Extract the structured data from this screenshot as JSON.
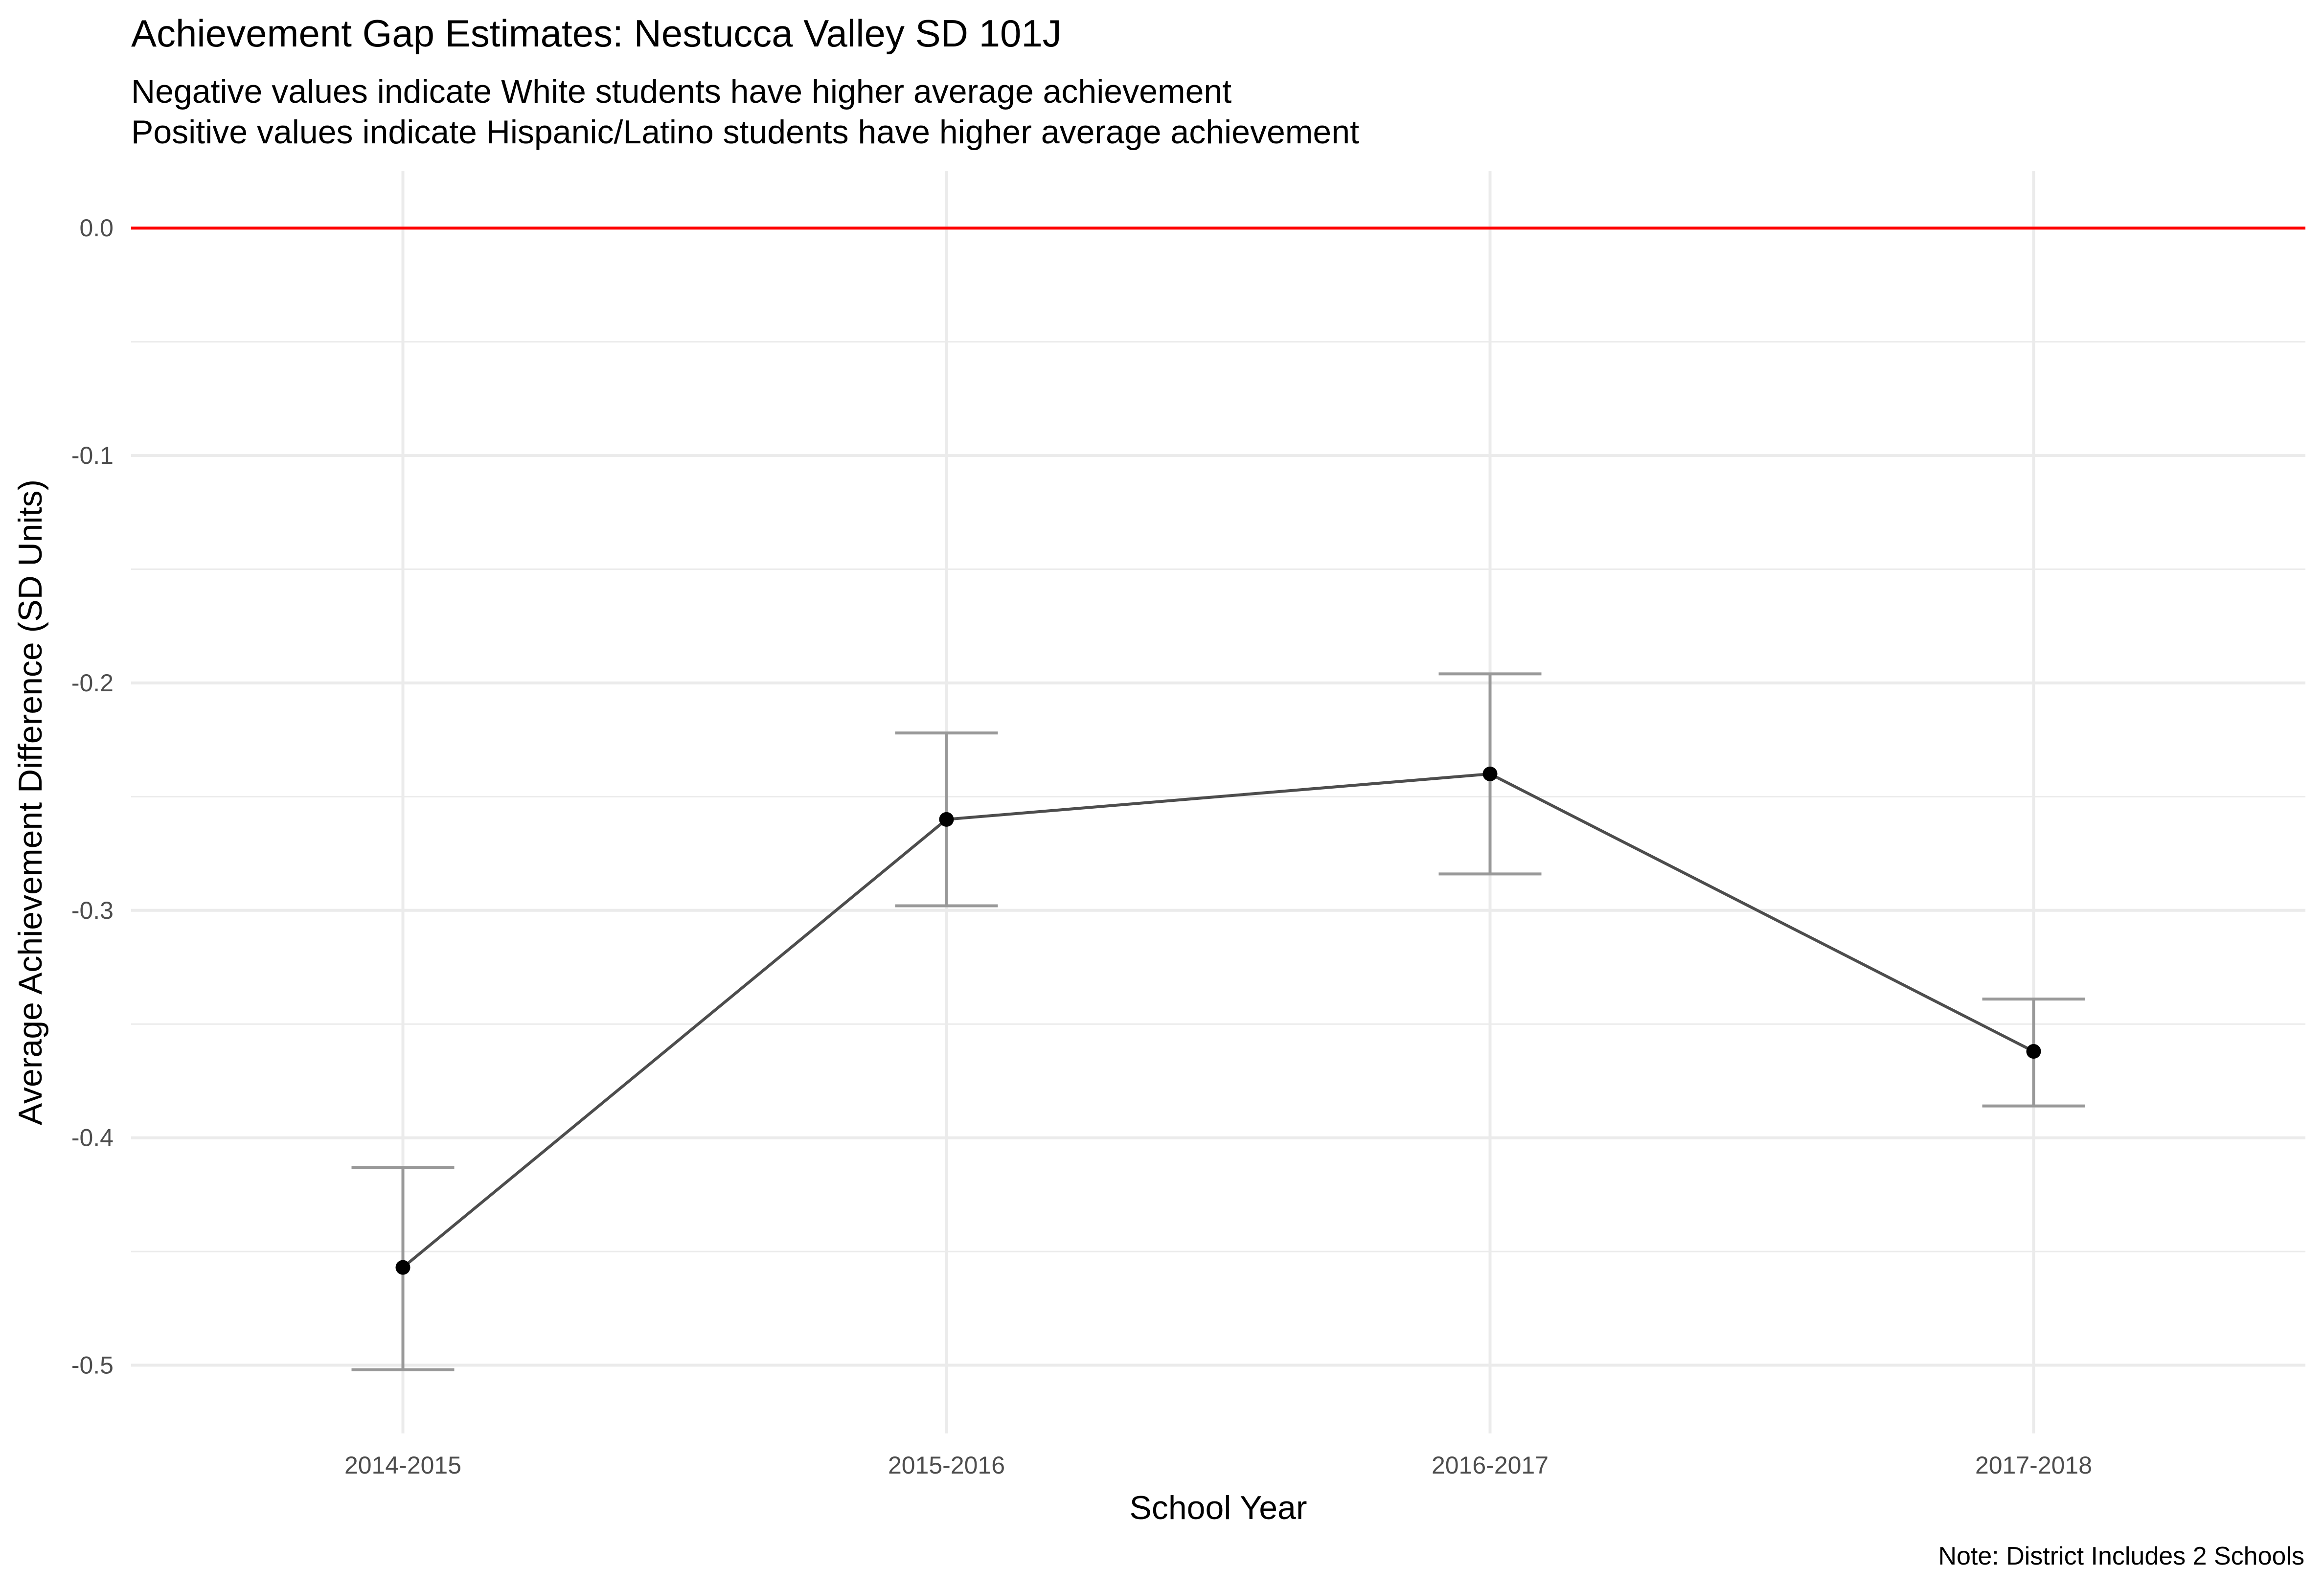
{
  "chart_data": {
    "type": "line",
    "title": "Achievement Gap Estimates: Nestucca Valley SD 101J",
    "subtitle_lines": [
      "Negative values indicate White students have higher average achievement",
      "Positive values indicate Hispanic/Latino students have higher average achievement"
    ],
    "xlabel": "School Year",
    "ylabel": "Average Achievement Difference (SD Units)",
    "caption": "Note: District Includes 2 Schools",
    "categories": [
      "2014-2015",
      "2015-2016",
      "2016-2017",
      "2017-2018"
    ],
    "series": [
      {
        "values": [
          -0.457,
          -0.26,
          -0.24,
          -0.362
        ],
        "lower": [
          -0.502,
          -0.298,
          -0.284,
          -0.386
        ],
        "upper": [
          -0.413,
          -0.222,
          -0.196,
          -0.339
        ]
      }
    ],
    "reference_line": {
      "y": 0.0,
      "color": "#ff0000"
    },
    "y_ticks": [
      0.0,
      -0.1,
      -0.2,
      -0.3,
      -0.4,
      -0.5
    ],
    "y_tick_labels": [
      "0.0",
      "-0.1",
      "-0.2",
      "-0.3",
      "-0.4",
      "-0.5"
    ],
    "ylim": [
      -0.53,
      0.025
    ],
    "grid": true,
    "colors": {
      "line": "#4d4d4d",
      "point": "#000000",
      "errorbar": "#999999",
      "grid": "#ebebeb"
    }
  }
}
